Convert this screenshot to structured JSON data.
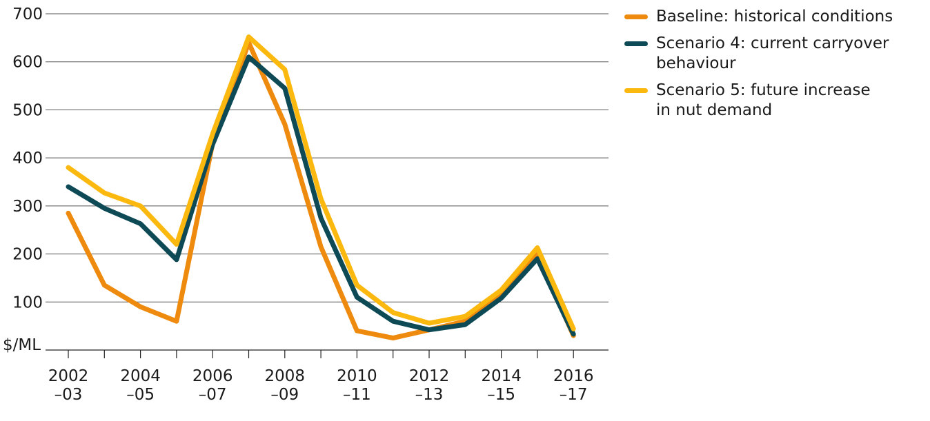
{
  "chart_data": {
    "type": "line",
    "ylabel": "$/ML",
    "ylim": [
      0,
      700
    ],
    "yticks": [
      "100",
      "200",
      "300",
      "400",
      "500",
      "600",
      "700"
    ],
    "xtick_labels": [
      {
        "top": "2002",
        "bottom": "–03"
      },
      {
        "top": "2004",
        "bottom": "–05"
      },
      {
        "top": "2006",
        "bottom": "–07"
      },
      {
        "top": "2008",
        "bottom": "–09"
      },
      {
        "top": "2010",
        "bottom": "–11"
      },
      {
        "top": "2012",
        "bottom": "–13"
      },
      {
        "top": "2014",
        "bottom": "–15"
      },
      {
        "top": "2016",
        "bottom": "–17"
      }
    ],
    "x": [
      "2002–03",
      "2003–04",
      "2004–05",
      "2005–06",
      "2006–07",
      "2007–08",
      "2008–09",
      "2009–10",
      "2010–11",
      "2011–12",
      "2012–13",
      "2013–14",
      "2014–15",
      "2015–16",
      "2016–17"
    ],
    "grid": true,
    "legend_position": "right",
    "series": [
      {
        "name": "Baseline: historical conditions",
        "legend_lines": [
          "Baseline: historical conditions"
        ],
        "color": "#ee8a0d",
        "values": [
          285,
          135,
          90,
          60,
          430,
          640,
          470,
          215,
          40,
          25,
          42,
          60,
          115,
          200,
          30
        ]
      },
      {
        "name": "Scenario 4: current carryover behaviour",
        "legend_lines": [
          "Scenario 4: current carryover",
          "behaviour"
        ],
        "color": "#0d4a55",
        "values": [
          340,
          295,
          263,
          188,
          428,
          610,
          545,
          275,
          110,
          60,
          42,
          53,
          108,
          190,
          33
        ]
      },
      {
        "name": "Scenario 5: future increase in nut demand",
        "legend_lines": [
          "Scenario 5: future increase",
          "in nut demand"
        ],
        "color": "#fbb80f",
        "values": [
          380,
          327,
          300,
          220,
          450,
          652,
          584,
          315,
          135,
          78,
          56,
          70,
          125,
          213,
          44
        ]
      }
    ]
  }
}
